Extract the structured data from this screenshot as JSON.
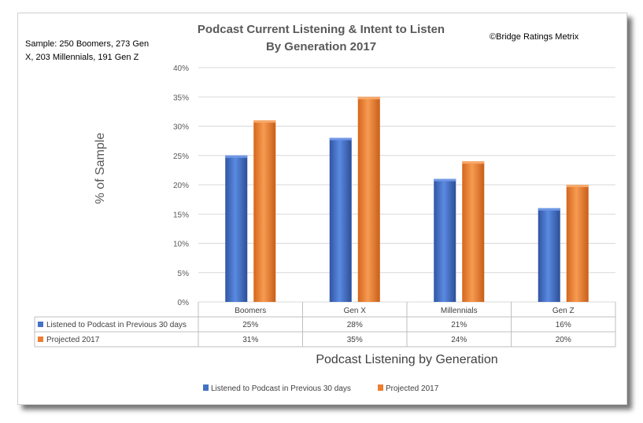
{
  "sample_note_line1": "Sample: 250 Boomers, 273 Gen",
  "sample_note_line2": "X, 203 Millennials, 191 Gen Z",
  "copyright": "©Bridge Ratings Metrix",
  "colors": {
    "series1": "#4472c4",
    "series2": "#ed7d31",
    "grid": "#d9d9d9"
  },
  "chart_data": {
    "type": "bar",
    "title": "Podcast Current Listening & Intent to Listen",
    "subtitle": "By Generation 2017",
    "xlabel": "Podcast Listening by Generation",
    "ylabel": "% of Sample",
    "categories": [
      "Boomers",
      "Gen X",
      "Millennials",
      "Gen Z"
    ],
    "ylim": [
      0,
      40
    ],
    "yticks": [
      "0%",
      "5%",
      "10%",
      "15%",
      "20%",
      "25%",
      "30%",
      "35%",
      "40%"
    ],
    "grid": true,
    "legend": "bottom",
    "series": [
      {
        "name": "Listened to Podcast in Previous 30 days",
        "values": [
          25,
          28,
          21,
          16
        ],
        "labels": [
          "25%",
          "28%",
          "21%",
          "16%"
        ]
      },
      {
        "name": "Projected 2017",
        "values": [
          31,
          35,
          24,
          20
        ],
        "labels": [
          "31%",
          "35%",
          "24%",
          "20%"
        ]
      }
    ]
  }
}
